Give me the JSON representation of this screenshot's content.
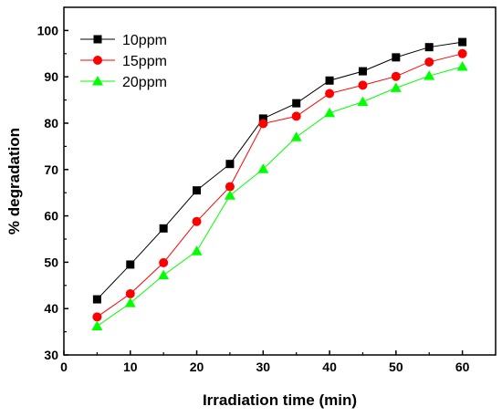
{
  "chart_data": {
    "type": "line",
    "title": "",
    "xlabel": "Irradiation time (min)",
    "ylabel": "% degradation",
    "xlim": [
      0,
      65
    ],
    "ylim": [
      30,
      105
    ],
    "xticks": [
      0,
      10,
      20,
      30,
      40,
      50,
      60
    ],
    "yticks": [
      30,
      40,
      50,
      60,
      70,
      80,
      90,
      100
    ],
    "grid": false,
    "legend_position": "top-left",
    "x": [
      5,
      10,
      15,
      20,
      25,
      30,
      35,
      40,
      45,
      50,
      55,
      60
    ],
    "series": [
      {
        "name": "10ppm",
        "marker": "square",
        "marker_color": "#000000",
        "line_color": "#000000",
        "values": [
          42.0,
          49.5,
          57.3,
          65.5,
          71.2,
          81.0,
          84.3,
          89.2,
          91.2,
          94.2,
          96.4,
          97.5
        ]
      },
      {
        "name": "15ppm",
        "marker": "circle",
        "marker_color": "#ff0000",
        "line_color": "#ff0000",
        "values": [
          38.2,
          43.2,
          49.9,
          58.8,
          66.3,
          79.9,
          81.5,
          86.4,
          88.2,
          90.1,
          93.2,
          95.0
        ]
      },
      {
        "name": "20ppm",
        "marker": "triangle",
        "marker_color": "#00ff00",
        "line_color": "#00ff00",
        "values": [
          36.2,
          41.2,
          47.2,
          52.4,
          64.4,
          70.1,
          77.0,
          82.2,
          84.6,
          87.6,
          90.2,
          92.2
        ]
      }
    ]
  }
}
